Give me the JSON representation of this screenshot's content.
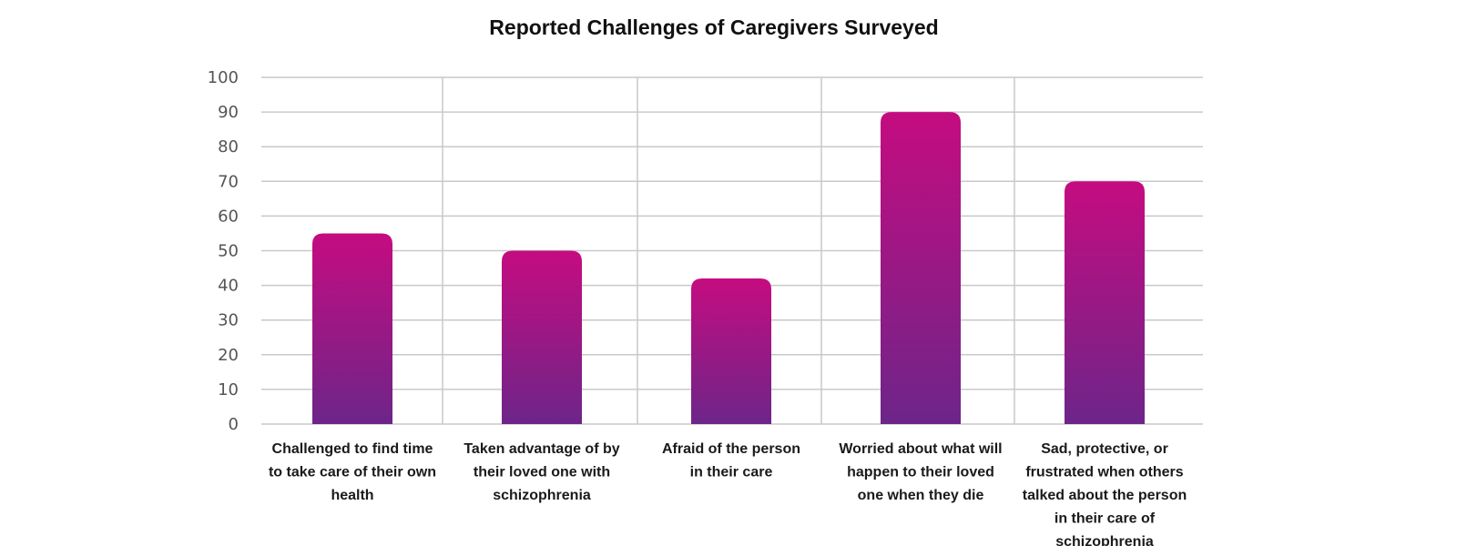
{
  "chart_data": {
    "type": "bar",
    "title": "Reported Challenges of Caregivers Surveyed",
    "xlabel": "",
    "ylabel": "",
    "ylim": [
      0,
      100
    ],
    "yticks": [
      "0",
      "10",
      "20",
      "30",
      "40",
      "50",
      "60",
      "70",
      "80",
      "90",
      "100"
    ],
    "grid": true,
    "categories": [
      [
        "Challenged to find time",
        "to take care of their own",
        "health"
      ],
      [
        "Taken advantage of by",
        "their loved one with",
        "schizophrenia"
      ],
      [
        "Afraid of the person",
        "in their care"
      ],
      [
        "Worried about what will",
        "happen to their loved",
        "one when they die"
      ],
      [
        "Sad, protective, or",
        "frustrated when others",
        "talked about the person",
        "in their care of",
        "schizophrenia"
      ]
    ],
    "values": [
      55,
      50,
      42,
      90,
      70
    ],
    "colors": {
      "bar_top": "#c50c80",
      "bar_bottom": "#6d2589",
      "grid": "#c9c9c9"
    }
  }
}
